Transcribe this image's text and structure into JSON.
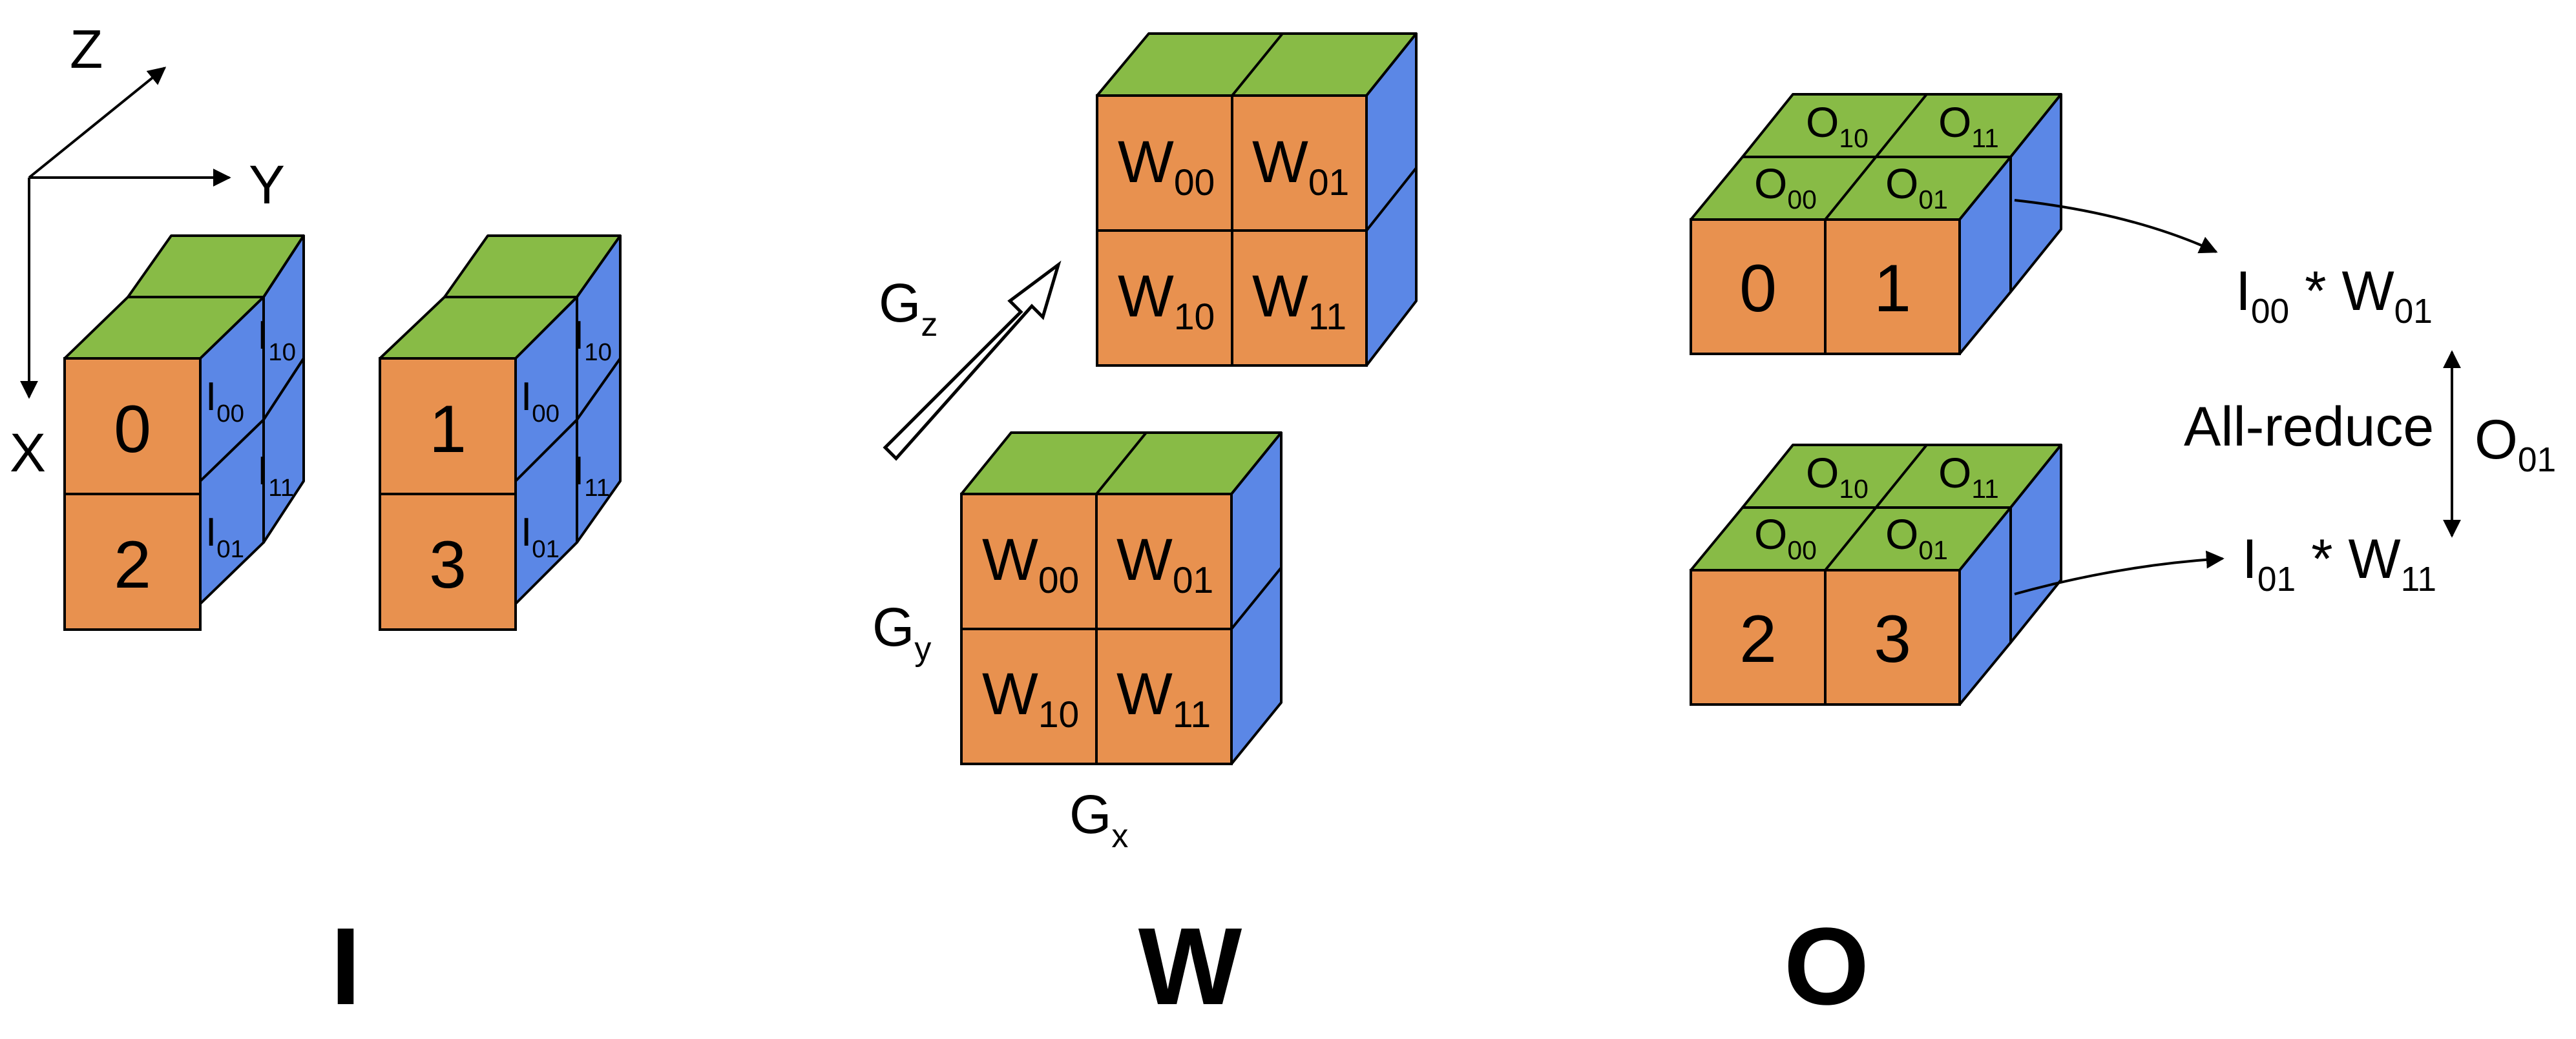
{
  "colors": {
    "front": "#E8914F",
    "top": "#88BB46",
    "side": "#5B87E6",
    "stroke": "#000000",
    "background": "#FFFFFF"
  },
  "axes": {
    "z": "Z",
    "y": "Y",
    "x": "X"
  },
  "input": {
    "title": "I",
    "blocks": [
      {
        "front": [
          "0",
          "2"
        ],
        "side": [
          [
            "I",
            "00"
          ],
          [
            "I",
            "01"
          ]
        ],
        "side_back": [
          [
            "I",
            "10"
          ],
          [
            "I",
            "11"
          ]
        ]
      },
      {
        "front": [
          "1",
          "3"
        ],
        "side": [
          [
            "I",
            "00"
          ],
          [
            "I",
            "01"
          ]
        ],
        "side_back": [
          [
            "I",
            "10"
          ],
          [
            "I",
            "11"
          ]
        ]
      }
    ]
  },
  "weight": {
    "title": "W",
    "gz": [
      "G",
      "z"
    ],
    "gy": [
      "G",
      "y"
    ],
    "gx": [
      "G",
      "x"
    ],
    "cubes": [
      {
        "front": [
          [
            "W",
            "00"
          ],
          [
            "W",
            "01"
          ],
          [
            "W",
            "10"
          ],
          [
            "W",
            "11"
          ]
        ]
      },
      {
        "front": [
          [
            "W",
            "00"
          ],
          [
            "W",
            "01"
          ],
          [
            "W",
            "10"
          ],
          [
            "W",
            "11"
          ]
        ]
      }
    ]
  },
  "output": {
    "title": "O",
    "slabs": [
      {
        "front": [
          "0",
          "1"
        ],
        "top_back": [
          [
            "O",
            "10"
          ],
          [
            "O",
            "11"
          ]
        ],
        "top_front": [
          [
            "O",
            "00"
          ],
          [
            "O",
            "01"
          ]
        ]
      },
      {
        "front": [
          "2",
          "3"
        ],
        "top_back": [
          [
            "O",
            "10"
          ],
          [
            "O",
            "11"
          ]
        ],
        "top_front": [
          [
            "O",
            "00"
          ],
          [
            "O",
            "01"
          ]
        ]
      }
    ],
    "eq_top": {
      "a": [
        "I",
        "00"
      ],
      "op": " * ",
      "b": [
        "W",
        "01"
      ]
    },
    "eq_bottom": {
      "a": [
        "I",
        "01"
      ],
      "op": " * ",
      "b": [
        "W",
        "11"
      ]
    },
    "allreduce": "All-reduce",
    "o01": [
      "O",
      "01"
    ]
  }
}
